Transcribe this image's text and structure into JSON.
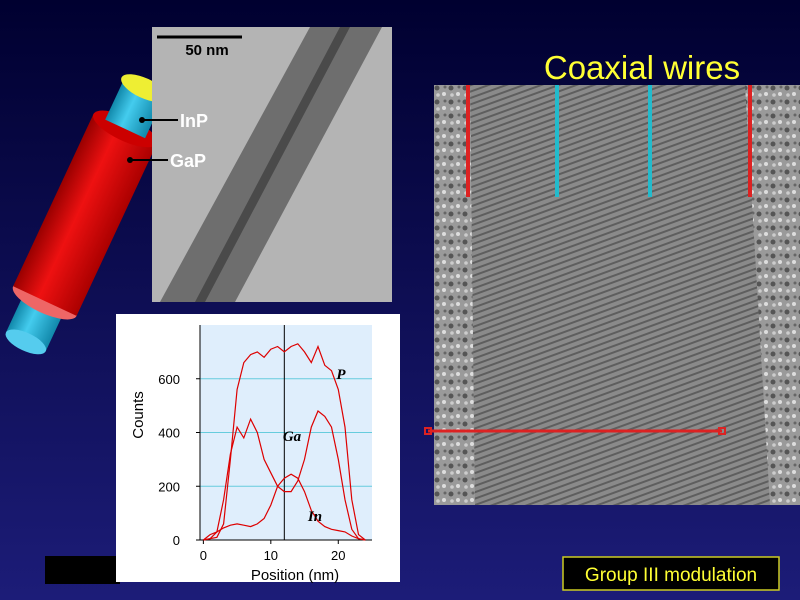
{
  "title": "Coaxial wires",
  "scale_bar": "50 nm",
  "labels": [
    "InP",
    "GaP"
  ],
  "caption": "Group III modulation",
  "chart_data": {
    "type": "line",
    "x_label": "Position (nm)",
    "y_label": "Counts",
    "x": [
      0,
      1,
      2,
      3,
      4,
      5,
      6,
      7,
      8,
      9,
      10,
      11,
      12,
      13,
      14,
      15,
      16,
      17,
      18,
      19,
      20,
      21,
      22,
      23,
      24
    ],
    "series": [
      {
        "name": "P",
        "color": "#dd0000",
        "values": [
          0,
          5,
          10,
          60,
          300,
          560,
          660,
          690,
          700,
          680,
          710,
          720,
          700,
          720,
          730,
          700,
          660,
          720,
          650,
          630,
          560,
          420,
          150,
          20,
          0
        ]
      },
      {
        "name": "Ga",
        "color": "#dd0000",
        "values": [
          0,
          5,
          30,
          150,
          320,
          420,
          380,
          450,
          400,
          300,
          250,
          200,
          180,
          180,
          220,
          300,
          420,
          480,
          460,
          420,
          300,
          150,
          40,
          5,
          0
        ]
      },
      {
        "name": "In",
        "color": "#dd0000",
        "values": [
          0,
          20,
          30,
          45,
          55,
          60,
          55,
          50,
          60,
          80,
          130,
          200,
          230,
          245,
          230,
          180,
          110,
          70,
          50,
          40,
          35,
          30,
          15,
          5,
          0
        ]
      }
    ],
    "xlim": [
      -0.5,
      25
    ],
    "ylim": [
      0,
      800
    ],
    "xticks": [
      0,
      10,
      20
    ],
    "yticks": [
      0,
      200,
      400,
      600
    ],
    "vline": 12,
    "grid": true
  }
}
